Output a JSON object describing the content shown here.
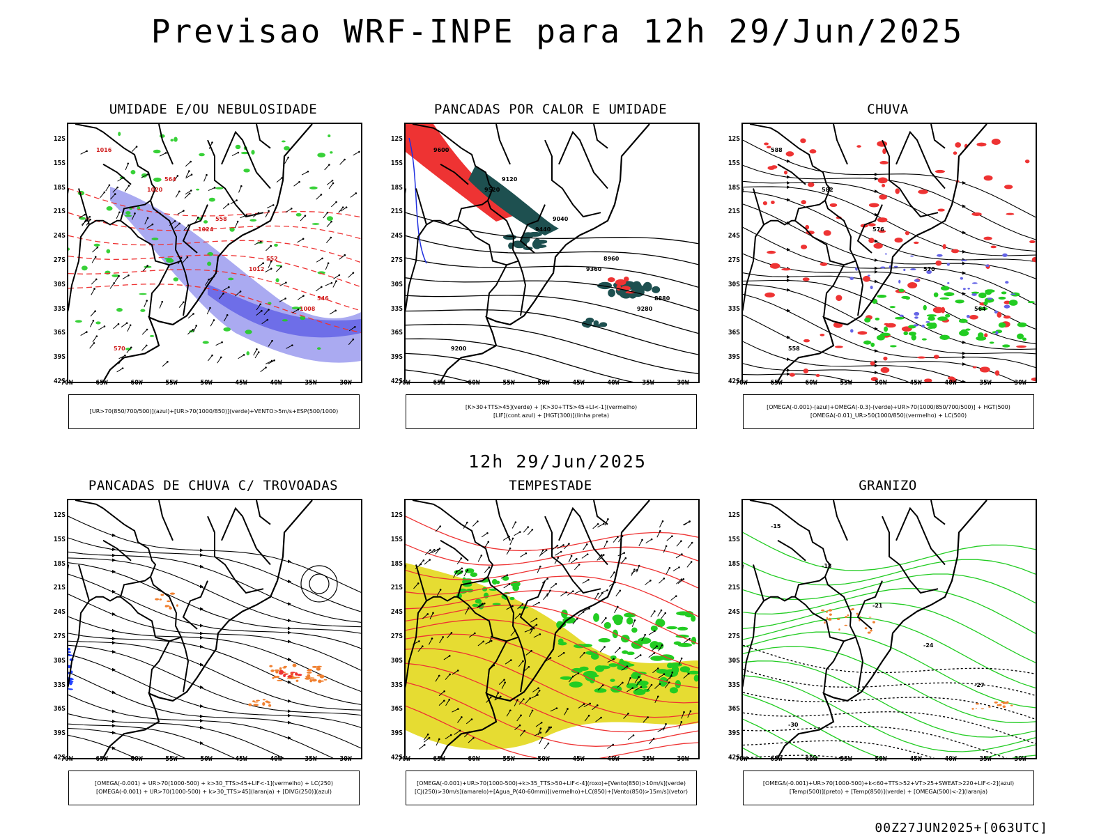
{
  "title": "Previsao WRF-INPE  para 12h 29/Jun/2025",
  "mid_title": "12h 29/Jun/2025",
  "footer": "00Z27JUN2025+[063UTC]",
  "lat_labels": [
    "12S",
    "15S",
    "18S",
    "21S",
    "24S",
    "27S",
    "30S",
    "33S",
    "36S",
    "39S",
    "42S"
  ],
  "lon_labels": [
    "70W",
    "65W",
    "60W",
    "55W",
    "50W",
    "45W",
    "40W",
    "35W",
    "30W"
  ],
  "panels": [
    {
      "title": "UMIDADE E/OU NEBULOSIDADE",
      "legend": [
        "[UR>70(850/700/500)](azul)+[UR>70(1000/850)](verde)+VENTO>5m/s+ESP(500/1000)"
      ],
      "labels": [
        "1016",
        "1020",
        "1024",
        "1012",
        "1008",
        "570",
        "564",
        "558",
        "552",
        "546"
      ]
    },
    {
      "title": "PANCADAS POR CALOR E UMIDADE",
      "legend": [
        "[K>30+TTS>45](verde) + [K>30+TTS>45+LI<-1](vermelho)",
        "[LIF](cont.azul) + [HGT(300)](linha preta)"
      ],
      "labels": [
        "9600",
        "9520",
        "9440",
        "9360",
        "9280",
        "9200",
        "9120",
        "9040",
        "8960",
        "8880"
      ]
    },
    {
      "title": "CHUVA",
      "legend": [
        "[OMEGA(-0.001)-(azul)+OMEGA(-0.3)-(verde)+UR>70(1000/850/700/500)] + HGT(500)",
        "[OMEGA(-0.01)_UR>50(1000/850)(vermelho) + LC(500)"
      ],
      "labels": [
        "588",
        "582",
        "576",
        "570",
        "564",
        "558"
      ]
    },
    {
      "title": "PANCADAS DE CHUVA C/ TROVOADAS",
      "legend": [
        "[OMEGA(-0.001) + UR>70(1000-500) + k>30_TTS>45+LIF<-1](vermelho) + LC(250)",
        "[OMEGA(-0.001) + UR>70(1000-500) + k>30_TTS>45](laranja) + [DIVG(250)](azul)"
      ],
      "labels": []
    },
    {
      "title": "TEMPESTADE",
      "legend": [
        "[OMEGA(-0.001)+UR>70(1000-500)+k>35_TTS>50+LIF<-4](roxo)+[Vento(850)>10m/s](verde)",
        "[CJ(250)>30m/s](amarelo)+[Agua_P(40-60mm)](vermelho)+LC(850)+[Vento(850)>15m/s](vetor)"
      ],
      "labels": []
    },
    {
      "title": "GRANIZO",
      "legend": [
        "[OMEGA(-0.001)+UR>70(1000-500)+k<60+TTS>52+VT>25+SWEAT>220+LIF<-2](azul)",
        "[Temp(500)](preto) + [Temp(850)](verde) + [OMEGA(500)<-2](laranja)"
      ],
      "labels": [
        "-15",
        "-18",
        "-21",
        "-24",
        "-27",
        "-30"
      ]
    }
  ],
  "colors": {
    "blue": "#6464e6",
    "green": "#22cc22",
    "red": "#ee3333",
    "orange": "#f08030",
    "yellow": "#e6dc32",
    "teal": "#1e5050"
  }
}
